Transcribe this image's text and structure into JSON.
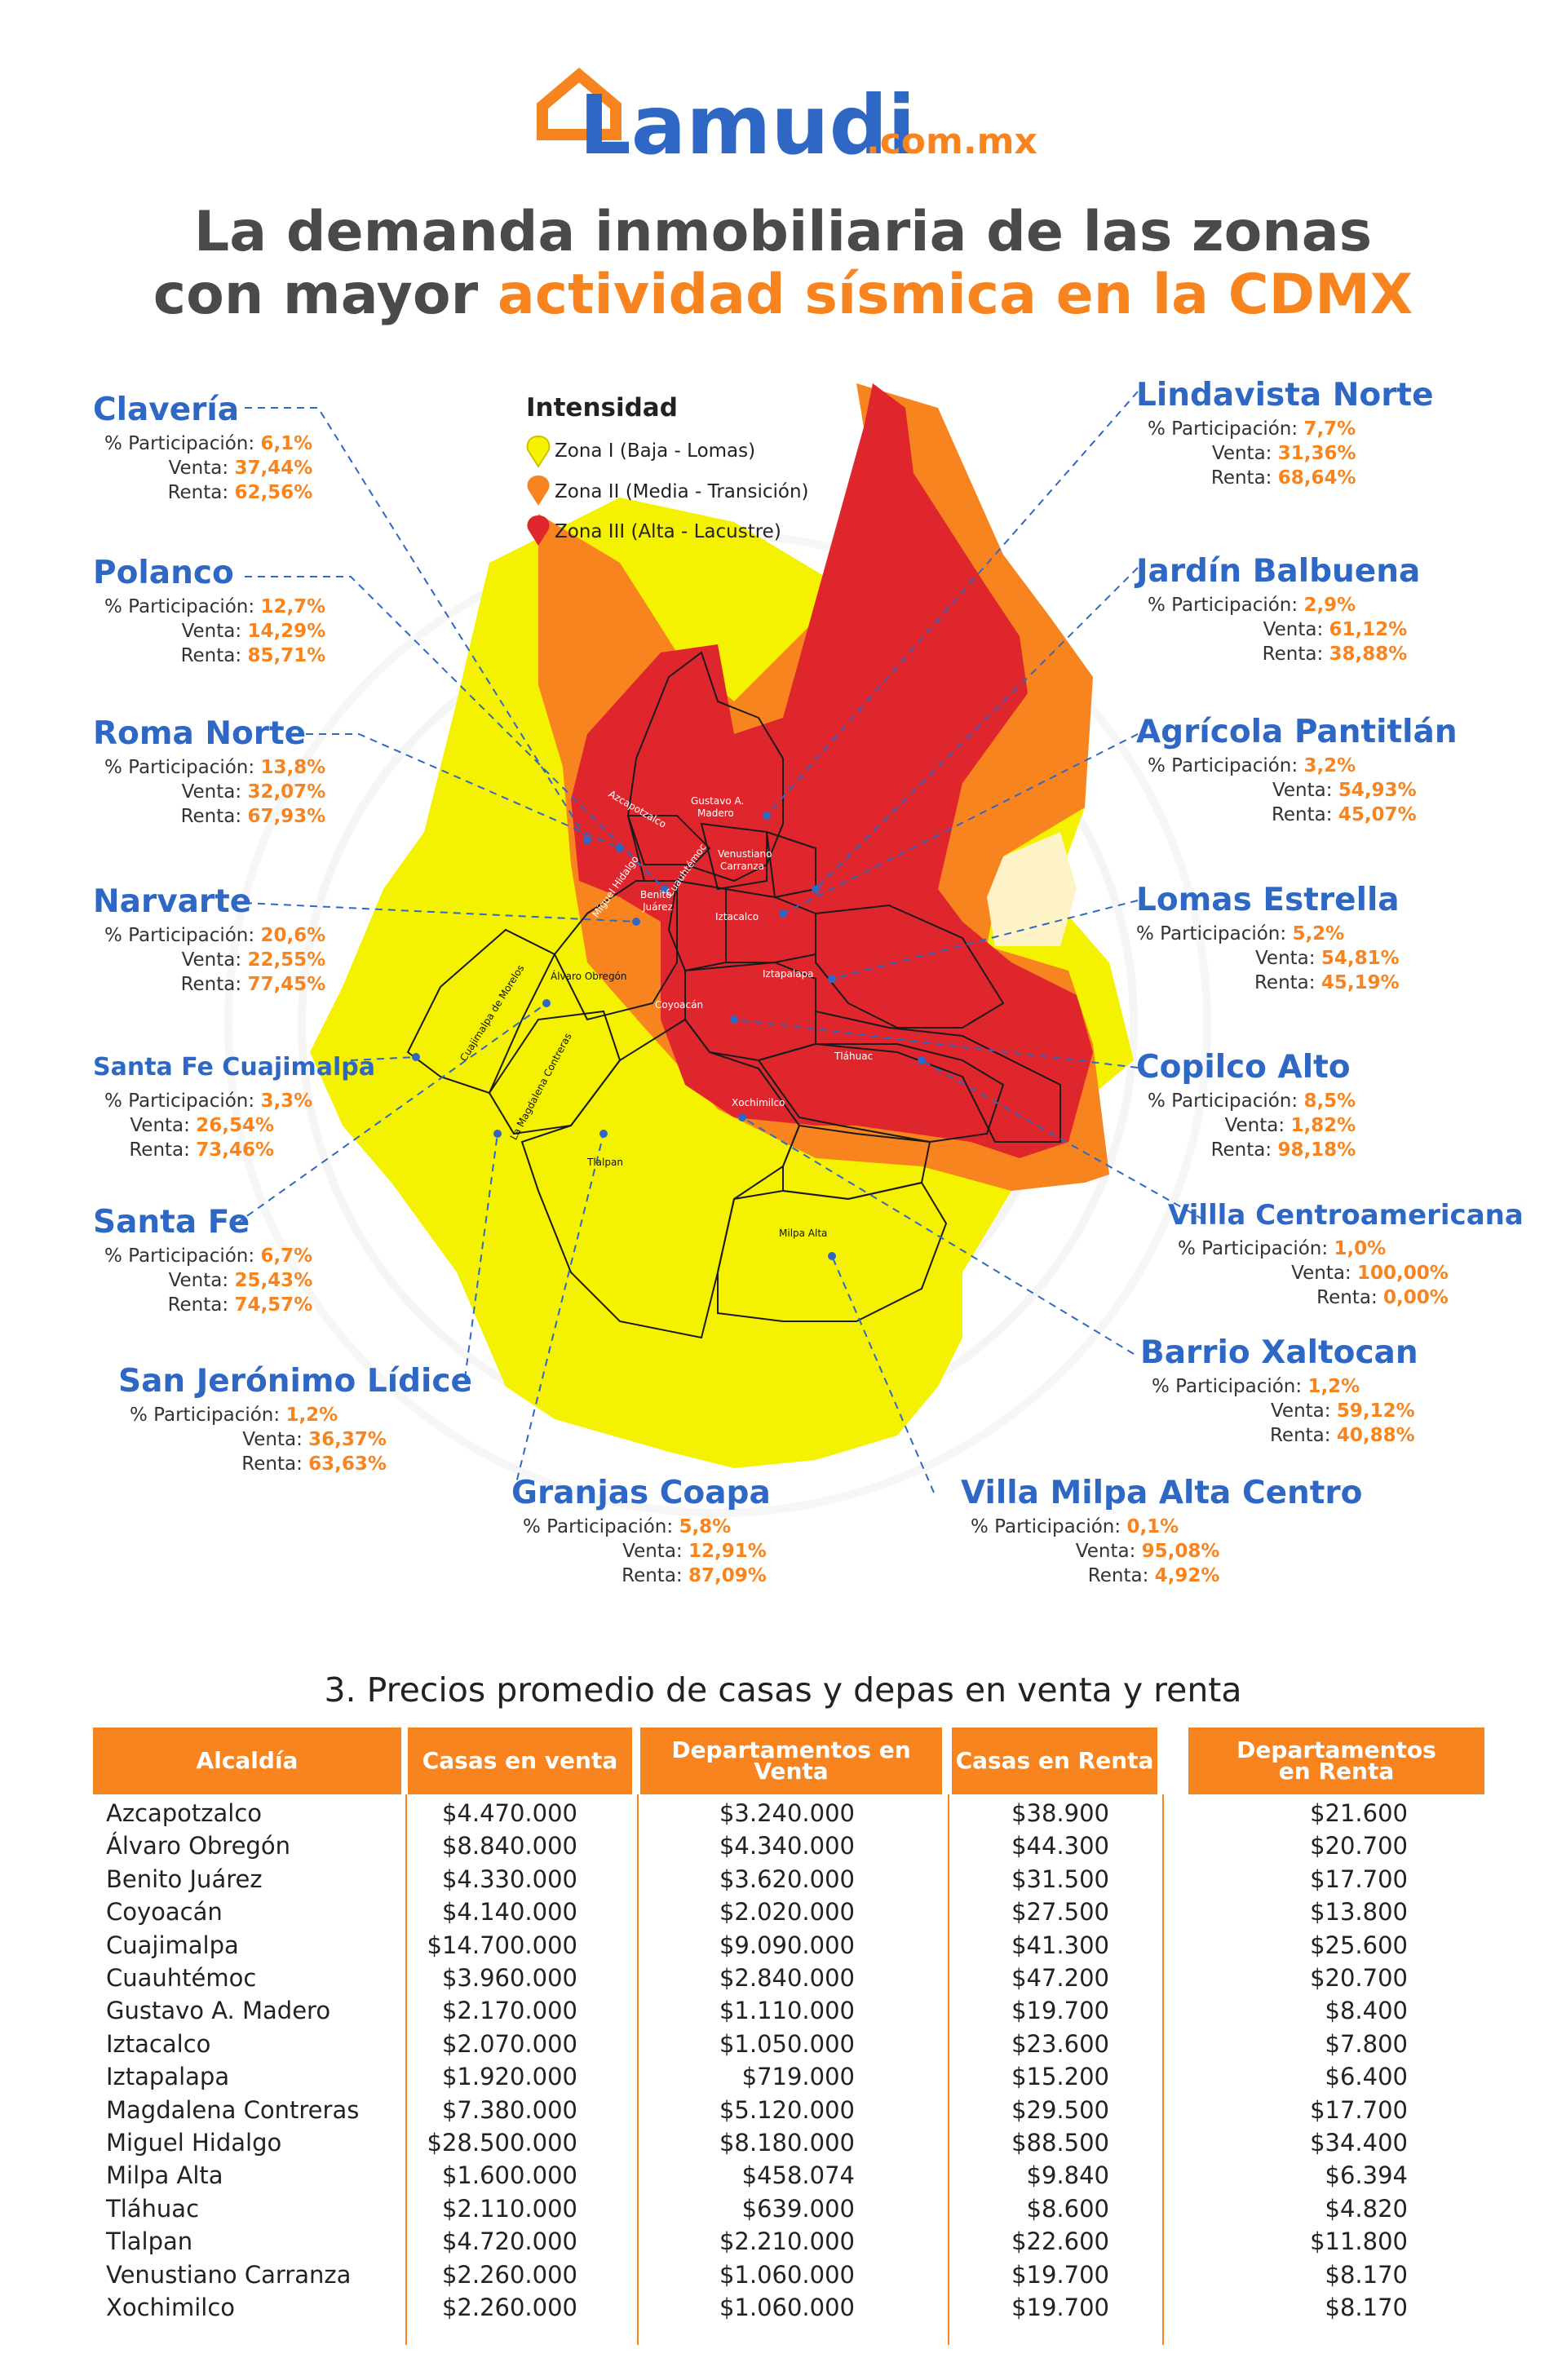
{
  "brand": {
    "name": "Lamudi",
    "domain": ".com.mx",
    "accent": "#f7841f",
    "blue": "#2e68c4"
  },
  "title": {
    "line1": "La demanda inmobiliaria de las zonas",
    "line2_prefix": "con mayor ",
    "line2_highlight": "actividad sísmica en la CDMX"
  },
  "legend": {
    "title": "Intensidad",
    "items": [
      {
        "label": "Zona I (Baja - Lomas)",
        "color": "#f5f200"
      },
      {
        "label": "Zona II (Media - Transición)",
        "color": "#f7841f"
      },
      {
        "label": "Zona III (Alta - Lacustre)",
        "color": "#e0262d"
      }
    ]
  },
  "labels": {
    "participacion": "% Participación:",
    "venta": "Venta:",
    "renta": "Renta:"
  },
  "callouts": [
    {
      "name": "Clavería",
      "participacion": "6,1%",
      "venta": "37,44%",
      "renta": "62,56%"
    },
    {
      "name": "Polanco",
      "participacion": "12,7%",
      "venta": "14,29%",
      "renta": "85,71%"
    },
    {
      "name": "Roma Norte",
      "participacion": "13,8%",
      "venta": "32,07%",
      "renta": "67,93%"
    },
    {
      "name": "Narvarte",
      "participacion": "20,6%",
      "venta": "22,55%",
      "renta": "77,45%"
    },
    {
      "name": "Santa Fe Cuajimalpa",
      "participacion": "3,3%",
      "venta": "26,54%",
      "renta": "73,46%"
    },
    {
      "name": "Santa Fe",
      "participacion": "6,7%",
      "venta": "25,43%",
      "renta": "74,57%"
    },
    {
      "name": "San Jerónimo Lídice",
      "participacion": "1,2%",
      "venta": "36,37%",
      "renta": "63,63%"
    },
    {
      "name": "Granjas Coapa",
      "participacion": "5,8%",
      "venta": "12,91%",
      "renta": "87,09%"
    },
    {
      "name": "Villa Milpa Alta Centro",
      "participacion": "0,1%",
      "venta": "95,08%",
      "renta": "4,92%"
    },
    {
      "name": "Barrio Xaltocan",
      "participacion": "1,2%",
      "venta": "59,12%",
      "renta": "40,88%"
    },
    {
      "name": "Villla Centroamericana",
      "participacion": "1,0%",
      "venta": "100,00%",
      "renta": "0,00%"
    },
    {
      "name": "Copilco Alto",
      "participacion": "8,5%",
      "venta": "1,82%",
      "renta": "98,18%"
    },
    {
      "name": "Lomas Estrella",
      "participacion": "5,2%",
      "venta": "54,81%",
      "renta": "45,19%"
    },
    {
      "name": "Agrícola Pantitlán",
      "participacion": "3,2%",
      "venta": "54,93%",
      "renta": "45,07%"
    },
    {
      "name": "Jardín Balbuena",
      "participacion": "2,9%",
      "venta": "61,12%",
      "renta": "38,88%"
    },
    {
      "name": "Lindavista Norte",
      "participacion": "7,7%",
      "venta": "31,36%",
      "renta": "68,64%"
    }
  ],
  "districts": {
    "gam1": "Gustavo A.",
    "gam2": "Madero",
    "azc": "Azcapotzalco",
    "cuau": "Cuauhtémoc",
    "mh": "Miguel Hidalgo",
    "vc1": "Venustiano",
    "vc2": "Carranza",
    "bj1": "Benito",
    "bj2": "Juárez",
    "izc": "Iztacalco",
    "izp": "Iztapalapa",
    "coy": "Coyoacán",
    "ao": "Álvaro Obregón",
    "cm": "Cuajimalpa de Morelos",
    "lmc": "La Magdalena Contreras",
    "tla": "Tlalpan",
    "tlh": "Tláhuac",
    "xoc": "Xochimilco",
    "ma": "Milpa Alta"
  },
  "table": {
    "title": "3. Precios promedio de casas y depas en venta y renta",
    "headers": [
      "Alcaldía",
      "Casas en venta",
      "Departamentos en Venta",
      "Casas en Renta",
      "Departamentos en Renta"
    ],
    "rows": [
      [
        "Azcapotzalco",
        "$4.470.000",
        "$3.240.000",
        "$38.900",
        "$21.600"
      ],
      [
        "Álvaro Obregón",
        "$8.840.000",
        "$4.340.000",
        "$44.300",
        "$20.700"
      ],
      [
        "Benito Juárez",
        "$4.330.000",
        "$3.620.000",
        "$31.500",
        "$17.700"
      ],
      [
        "Coyoacán",
        "$4.140.000",
        "$2.020.000",
        "$27.500",
        "$13.800"
      ],
      [
        "Cuajimalpa",
        "$14.700.000",
        "$9.090.000",
        "$41.300",
        "$25.600"
      ],
      [
        "Cuauhtémoc",
        "$3.960.000",
        "$2.840.000",
        "$47.200",
        "$20.700"
      ],
      [
        "Gustavo A. Madero",
        "$2.170.000",
        "$1.110.000",
        "$19.700",
        "$8.400"
      ],
      [
        "Iztacalco",
        "$2.070.000",
        "$1.050.000",
        "$23.600",
        "$7.800"
      ],
      [
        "Iztapalapa",
        "$1.920.000",
        "$719.000",
        "$15.200",
        "$6.400"
      ],
      [
        "Magdalena Contreras",
        "$7.380.000",
        "$5.120.000",
        "$29.500",
        "$17.700"
      ],
      [
        "Miguel Hidalgo",
        "$28.500.000",
        "$8.180.000",
        "$88.500",
        "$34.400"
      ],
      [
        "Milpa Alta",
        "$1.600.000",
        "$458.074",
        "$9.840",
        "$6.394"
      ],
      [
        "Tláhuac",
        "$2.110.000",
        "$639.000",
        "$8.600",
        "$4.820"
      ],
      [
        "Tlalpan",
        "$4.720.000",
        "$2.210.000",
        "$22.600",
        "$11.800"
      ],
      [
        "Venustiano Carranza",
        "$2.260.000",
        "$1.060.000",
        "$19.700",
        "$8.170"
      ],
      [
        "Xochimilco",
        "$2.260.000",
        "$1.060.000",
        "$19.700",
        "$8.170"
      ]
    ]
  }
}
